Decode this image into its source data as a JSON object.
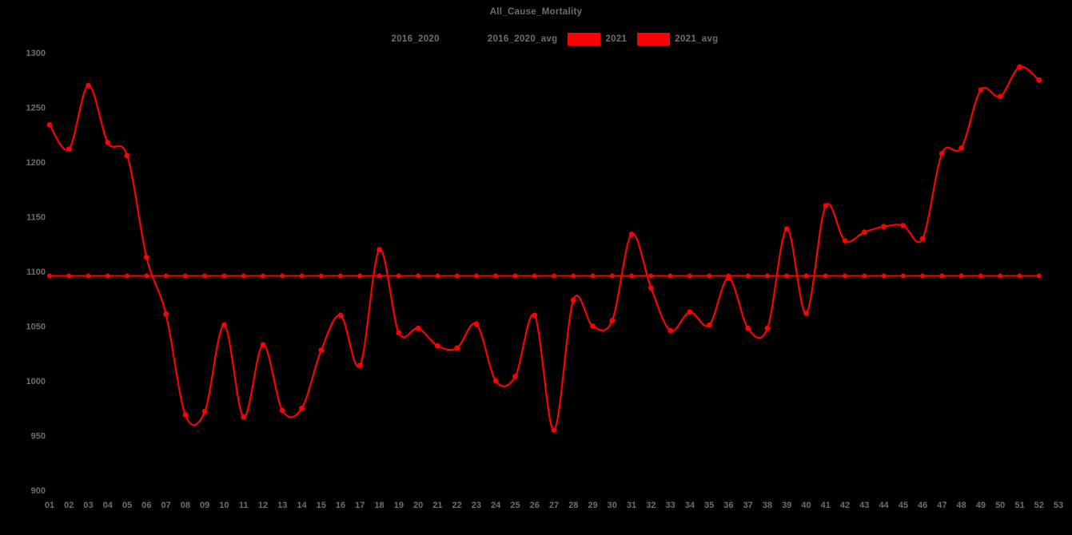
{
  "title": "All_Cause_Mortality",
  "colors": {
    "background": "#000000",
    "series_red": "#ff0000",
    "text_gray": "#6e6e6e",
    "hidden_series_black": "#000000"
  },
  "legend": [
    {
      "label": "2016_2020",
      "swatch": "#000000"
    },
    {
      "label": "2016_2020_avg",
      "swatch": "#000000"
    },
    {
      "label": "2021",
      "swatch": "#ff0000"
    },
    {
      "label": "2021_avg",
      "swatch": "#ff0000"
    }
  ],
  "chart_data": {
    "type": "line",
    "title": "All_Cause_Mortality",
    "xlabel": "",
    "ylabel": "",
    "categories": [
      "01",
      "02",
      "03",
      "04",
      "05",
      "06",
      "07",
      "08",
      "09",
      "10",
      "11",
      "12",
      "13",
      "14",
      "15",
      "16",
      "17",
      "18",
      "19",
      "20",
      "21",
      "22",
      "23",
      "24",
      "25",
      "26",
      "27",
      "28",
      "29",
      "30",
      "31",
      "32",
      "33",
      "34",
      "35",
      "36",
      "37",
      "38",
      "39",
      "40",
      "41",
      "42",
      "43",
      "44",
      "45",
      "46",
      "47",
      "48",
      "49",
      "50",
      "51",
      "52",
      "53"
    ],
    "y_ticks": [
      900,
      950,
      1000,
      1050,
      1100,
      1150,
      1200,
      1250,
      1300
    ],
    "ylim": [
      900,
      1300
    ],
    "grid": false,
    "legend_position": "top-center",
    "series": [
      {
        "name": "2016_2020",
        "color": "#000000",
        "visible": false,
        "values": []
      },
      {
        "name": "2016_2020_avg",
        "color": "#000000",
        "visible": false,
        "values": []
      },
      {
        "name": "2021",
        "color": "#ff0000",
        "marker": "circle",
        "smooth": true,
        "values": [
          1234,
          1212,
          1270,
          1218,
          1206,
          1113,
          1061,
          969,
          972,
          1051,
          967,
          1033,
          973,
          975,
          1028,
          1060,
          1014,
          1120,
          1044,
          1048,
          1032,
          1030,
          1052,
          1000,
          1004,
          1060,
          955,
          1074,
          1050,
          1055,
          1134,
          1085,
          1046,
          1063,
          1051,
          1094,
          1048,
          1048,
          1139,
          1062,
          1160,
          1128,
          1136,
          1141,
          1142,
          1130,
          1208,
          1213,
          1266,
          1260,
          1287,
          1275
        ]
      },
      {
        "name": "2021_avg",
        "color": "#ff0000",
        "marker": "circle",
        "flat_value": 1096,
        "weeks_covered": 52
      }
    ]
  }
}
